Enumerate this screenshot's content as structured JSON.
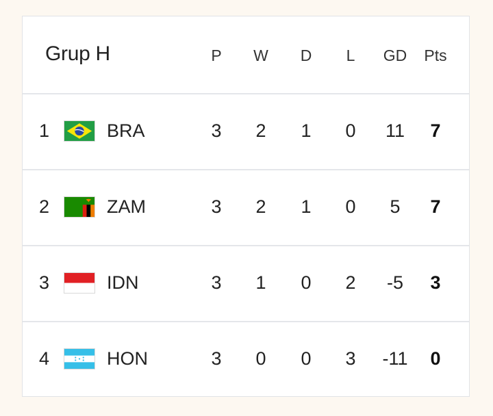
{
  "group": {
    "title": "Grup H"
  },
  "columns": [
    "P",
    "W",
    "D",
    "L",
    "GD",
    "Pts"
  ],
  "teams": [
    {
      "position": "1",
      "code": "BRA",
      "flag": "brazil-flag-icon",
      "p": "3",
      "w": "2",
      "d": "1",
      "l": "0",
      "gd": "11",
      "pts": "7"
    },
    {
      "position": "2",
      "code": "ZAM",
      "flag": "zambia-flag-icon",
      "p": "3",
      "w": "2",
      "d": "1",
      "l": "0",
      "gd": "5",
      "pts": "7"
    },
    {
      "position": "3",
      "code": "IDN",
      "flag": "indonesia-flag-icon",
      "p": "3",
      "w": "1",
      "d": "0",
      "l": "2",
      "gd": "-5",
      "pts": "3"
    },
    {
      "position": "4",
      "code": "HON",
      "flag": "honduras-flag-icon",
      "p": "3",
      "w": "0",
      "d": "0",
      "l": "3",
      "gd": "-11",
      "pts": "0"
    }
  ],
  "colors": {
    "page_background": "#fdf8f1",
    "card_background": "#ffffff",
    "divider": "#e4e6ea"
  }
}
